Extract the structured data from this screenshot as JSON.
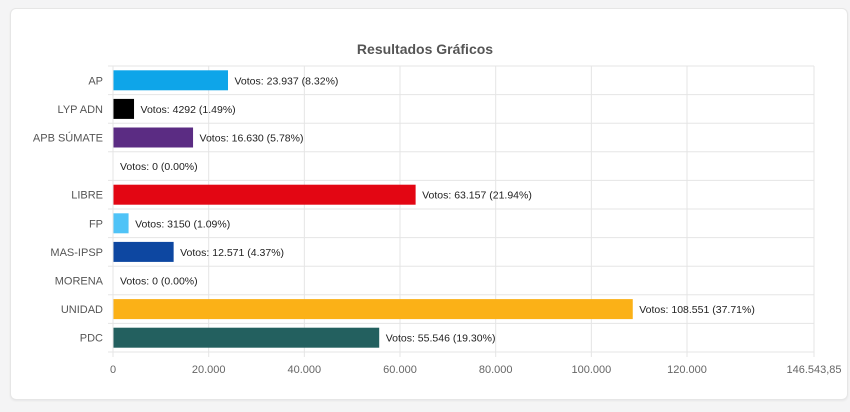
{
  "chart_data": {
    "type": "bar",
    "orientation": "horizontal",
    "title": "Resultados Gráficos",
    "categories": [
      "AP",
      "LYP ADN",
      "APB SÚMATE",
      "",
      "LIBRE",
      "FP",
      "MAS-IPSP",
      "MORENA",
      "UNIDAD",
      "PDC"
    ],
    "values": [
      23937,
      4292,
      16630,
      0,
      63157,
      3150,
      12571,
      0,
      108551,
      55546
    ],
    "data_labels": [
      "Votos: 23.937 (8.32%)",
      "Votos: 4292 (1.49%)",
      "Votos: 16.630 (5.78%)",
      "Votos: 0 (0.00%)",
      "Votos: 63.157 (21.94%)",
      "Votos: 3150 (1.09%)",
      "Votos: 12.571 (4.37%)",
      "Votos: 0 (0.00%)",
      "Votos: 108.551 (37.71%)",
      "Votos: 55.546 (19.30%)"
    ],
    "colors": [
      "#0ea5e9",
      "#000000",
      "#5b2c83",
      "#cccccc",
      "#e30613",
      "#4fc3f7",
      "#0d47a1",
      "#8b1a1a",
      "#fbb117",
      "#23605f"
    ],
    "xlim": [
      0,
      146543.85
    ],
    "x_ticks": [
      0,
      20000,
      40000,
      60000,
      80000,
      100000,
      120000,
      146543.85
    ],
    "x_tick_labels": [
      "0",
      "20.000",
      "40.000",
      "60.000",
      "80.000",
      "100.000",
      "120.000",
      "146.543,85"
    ],
    "grid": true,
    "legend": "none"
  }
}
